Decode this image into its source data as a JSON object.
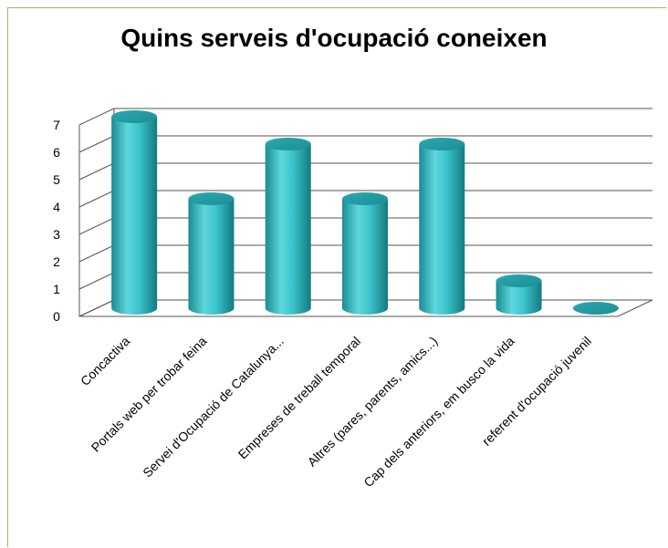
{
  "chart_data": {
    "type": "bar",
    "title": "Quins serveis d'ocupació coneixen",
    "categories": [
      "Concactiva",
      "Portals web per trobar feina",
      "Servei d'Ocupació de Catalunya...",
      "Empreses de treball temporal",
      "Altres (pares, parents, amics...)",
      "Cap dels anteriors, em busco la vida",
      "referent d'ocupació juvenil"
    ],
    "values": [
      7,
      4,
      6,
      4,
      6,
      1,
      0
    ],
    "ylim": [
      0,
      7
    ],
    "yticks": [
      0,
      1,
      2,
      3,
      4,
      5,
      6,
      7
    ],
    "grid": true,
    "style": "3d-cylinder",
    "colors": {
      "bar": "#3cc4cc",
      "frame_border": "#9bbb59",
      "grid": "#555555"
    }
  }
}
